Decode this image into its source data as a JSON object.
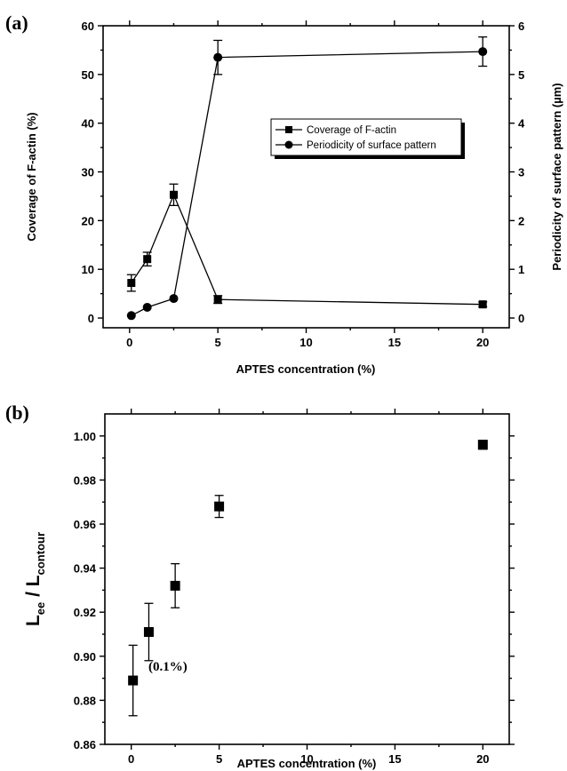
{
  "chart_data": [
    {
      "type": "line",
      "panel_label": "(a)",
      "xlabel": "APTES concentration (%)",
      "ylabel_left": "Coverage of F-actin (%)",
      "ylabel_right": "Periodicity of surface pattern (µm)",
      "xlim": [
        -1.5,
        21.5
      ],
      "ylim_left": [
        -2,
        60
      ],
      "ylim_right": [
        -0.2,
        6
      ],
      "x_ticks": [
        0,
        5,
        10,
        15,
        20
      ],
      "y_ticks_left": [
        0,
        10,
        20,
        30,
        40,
        50,
        60
      ],
      "y_ticks_right": [
        0,
        1,
        2,
        3,
        4,
        5,
        6
      ],
      "legend_placement": "center-right",
      "series": [
        {
          "name": "Coverage of F-actin",
          "axis": "left",
          "marker": "square",
          "x": [
            0.1,
            1,
            2.5,
            5,
            20
          ],
          "y": [
            7.2,
            12.1,
            25.3,
            3.8,
            2.8
          ],
          "err": [
            1.7,
            1.4,
            2.2,
            0.8,
            0.5
          ]
        },
        {
          "name": "Periodicity of surface pattern",
          "axis": "right",
          "marker": "circle",
          "x": [
            0.1,
            1,
            2.5,
            5,
            20
          ],
          "y": [
            0.05,
            0.22,
            0.4,
            5.35,
            5.47
          ],
          "err": [
            0,
            0,
            0,
            0.35,
            0.3
          ]
        }
      ]
    },
    {
      "type": "scatter",
      "panel_label": "(b)",
      "xlabel": "APTES concentration (%)",
      "ylabel_main": "L",
      "ylabel_sub1": "ee",
      "ylabel_mid": " / L",
      "ylabel_sub2": "contour",
      "xlim": [
        -1.5,
        21.5
      ],
      "ylim": [
        0.86,
        1.01
      ],
      "x_ticks": [
        0,
        5,
        10,
        15,
        20
      ],
      "y_ticks": [
        0.86,
        0.88,
        0.9,
        0.92,
        0.94,
        0.96,
        0.98,
        1.0
      ],
      "annotation": "(0.1%)",
      "series": [
        {
          "marker": "square",
          "x": [
            0.1,
            1,
            2.5,
            5,
            20
          ],
          "y": [
            0.889,
            0.911,
            0.932,
            0.968,
            0.996
          ],
          "err": [
            0.016,
            0.013,
            0.01,
            0.005,
            0.002
          ]
        }
      ]
    }
  ]
}
